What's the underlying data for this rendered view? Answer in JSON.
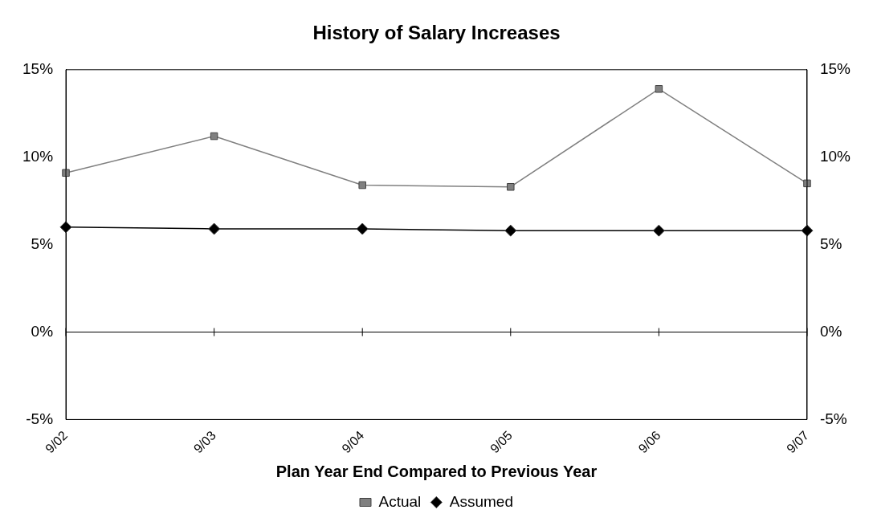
{
  "chart_data": {
    "type": "line",
    "title": "History of Salary Increases",
    "xlabel": "Plan Year End Compared to Previous Year",
    "categories": [
      "9/02",
      "9/03",
      "9/04",
      "9/05",
      "9/06",
      "9/07"
    ],
    "series": [
      {
        "name": "Actual",
        "color": "#808080",
        "marker": "square",
        "values": [
          9.1,
          11.2,
          8.4,
          8.3,
          13.9,
          8.5
        ]
      },
      {
        "name": "Assumed",
        "color": "#000000",
        "marker": "diamond",
        "values": [
          6.0,
          5.9,
          5.9,
          5.8,
          5.8,
          5.8
        ]
      }
    ],
    "ylim": [
      -5,
      15
    ],
    "yticks": [
      {
        "value": -5,
        "label": "-5%"
      },
      {
        "value": 0,
        "label": "0%"
      },
      {
        "value": 5,
        "label": "5%"
      },
      {
        "value": 10,
        "label": "10%"
      },
      {
        "value": 15,
        "label": "15%"
      }
    ],
    "y2lim": [
      -5,
      15
    ],
    "y2ticks": [
      {
        "value": -5,
        "label": "-5%"
      },
      {
        "value": 0,
        "label": "0%"
      },
      {
        "value": 5,
        "label": "5%"
      },
      {
        "value": 10,
        "label": "10%"
      },
      {
        "value": 15,
        "label": "15%"
      }
    ],
    "ref_lines": [
      {
        "axis": "y",
        "value": 0,
        "color": "#000000"
      }
    ],
    "grid": false,
    "legend": "bottom"
  }
}
